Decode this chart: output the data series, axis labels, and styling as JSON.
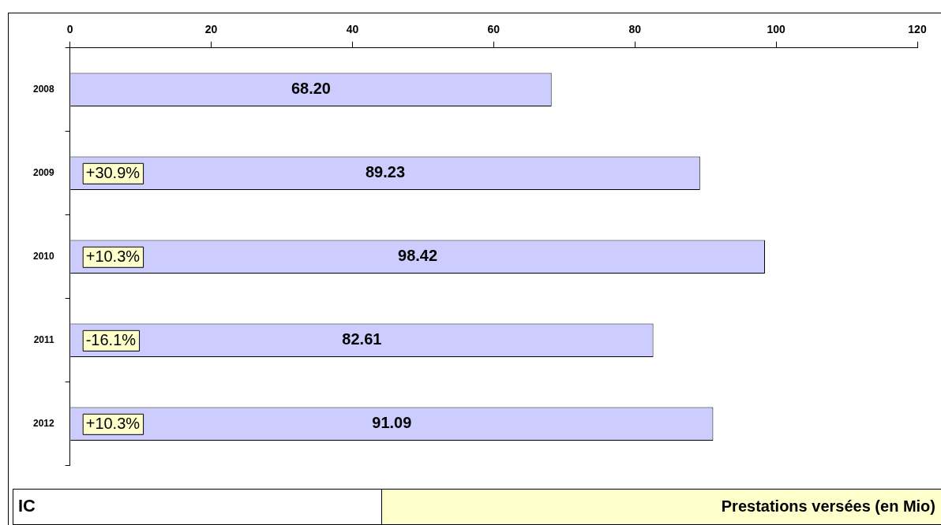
{
  "chart_data": {
    "type": "bar",
    "orientation": "horizontal",
    "title": "Prestations versées (en Mio)",
    "annotations": [
      "IC",
      "+30.9%",
      "+10.3%",
      "-16.1%",
      "+10.3%"
    ],
    "categories": [
      "2008",
      "2009",
      "2010",
      "2011",
      "2012"
    ],
    "values": [
      68.2,
      89.23,
      98.42,
      82.61,
      91.09
    ],
    "value_labels": [
      "68.20",
      "89.23",
      "98.42",
      "82.61",
      "91.09"
    ],
    "color": "#ccccff",
    "xlim": [
      0,
      120
    ],
    "xticks": [
      0,
      20,
      40,
      60,
      80,
      100,
      120
    ],
    "grid": false,
    "legend": false
  }
}
